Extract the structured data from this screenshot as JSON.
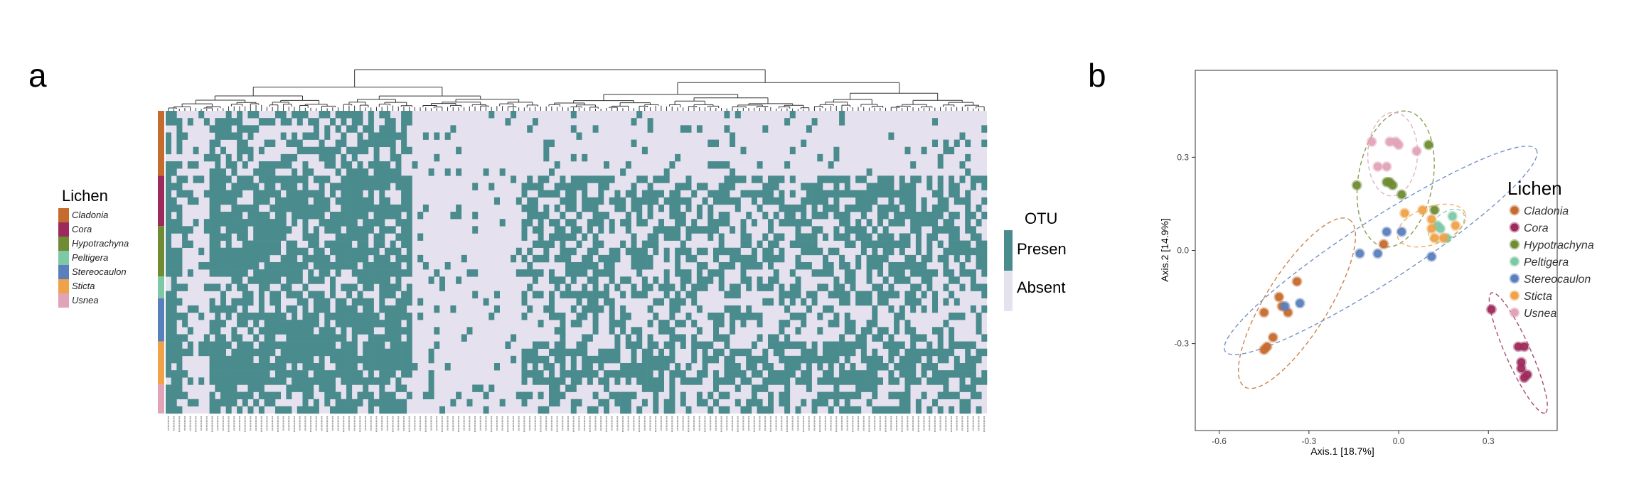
{
  "panel_a": {
    "label": "a",
    "lichen_legend": {
      "title": "Lichen",
      "items": [
        {
          "name": "Cladonia",
          "color": "#c66b2e"
        },
        {
          "name": "Cora",
          "color": "#9d2a5c"
        },
        {
          "name": "Hypotrachyna",
          "color": "#6f8c34"
        },
        {
          "name": "Peltigera",
          "color": "#7fc8a6"
        },
        {
          "name": "Stereocaulon",
          "color": "#5a7fbd"
        },
        {
          "name": "Sticta",
          "color": "#efa24a"
        },
        {
          "name": "Usnea",
          "color": "#e1a3b7"
        }
      ]
    },
    "otu_legend": {
      "title": "OTU",
      "items": [
        {
          "name": "Present",
          "color": "#4a8c8e"
        },
        {
          "name": "Absent",
          "color": "#e6e1ef"
        }
      ]
    }
  },
  "panel_b": {
    "label": "b",
    "legend_title": "Lichen"
  },
  "chart_data": [
    {
      "type": "heatmap",
      "title": "",
      "values_legend": [
        "Present",
        "Absent"
      ],
      "n_columns": 150,
      "n_rows": 42,
      "row_groups": [
        {
          "name": "Cladonia",
          "rows": 9
        },
        {
          "name": "Cora",
          "rows": 7
        },
        {
          "name": "Hypotrachyna",
          "rows": 7
        },
        {
          "name": "Peltigera",
          "rows": 3
        },
        {
          "name": "Stereocaulon",
          "rows": 6
        },
        {
          "name": "Sticta",
          "rows": 6
        },
        {
          "name": "Usnea",
          "rows": 4
        }
      ],
      "note_column_labels": "OTU identifiers printed vertically, illegible at this resolution"
    },
    {
      "type": "scatter",
      "title": "",
      "xlabel": "Axis.1   [18.7%]",
      "ylabel": "Axis.2   [14.9%]",
      "xlim": [
        -0.68,
        0.53
      ],
      "ylim": [
        -0.58,
        0.58
      ],
      "xticks": [
        "-0.6",
        "-0.3",
        "0.0",
        "0.3"
      ],
      "yticks": [
        "-0.3",
        "0.0",
        "0.3"
      ],
      "grid": false,
      "legend_position": "right",
      "series": [
        {
          "name": "Cladonia",
          "color": "#c66b2e",
          "points": [
            [
              -0.44,
              -0.31
            ],
            [
              -0.45,
              -0.32
            ],
            [
              -0.42,
              -0.28
            ],
            [
              -0.45,
              -0.2
            ],
            [
              -0.4,
              -0.15
            ],
            [
              -0.39,
              -0.18
            ],
            [
              -0.37,
              -0.2
            ],
            [
              -0.34,
              -0.1
            ],
            [
              -0.05,
              0.02
            ]
          ],
          "ellipse": {
            "cx": -0.34,
            "cy": -0.17,
            "rx": 0.33,
            "ry": 0.1,
            "angle": 58
          }
        },
        {
          "name": "Cora",
          "color": "#9d2a5c",
          "points": [
            [
              0.31,
              -0.19
            ],
            [
              0.4,
              -0.31
            ],
            [
              0.42,
              -0.31
            ],
            [
              0.41,
              -0.36
            ],
            [
              0.41,
              -0.38
            ],
            [
              0.43,
              -0.4
            ],
            [
              0.42,
              -0.41
            ]
          ],
          "ellipse": {
            "cx": 0.4,
            "cy": -0.33,
            "rx": 0.22,
            "ry": 0.04,
            "angle": -66
          }
        },
        {
          "name": "Hypotrachyna",
          "color": "#6f8c34",
          "points": [
            [
              -0.14,
              0.21
            ],
            [
              -0.04,
              0.22
            ],
            [
              -0.02,
              0.21
            ],
            [
              0.01,
              0.18
            ],
            [
              0.1,
              0.34
            ],
            [
              0.12,
              0.13
            ],
            [
              -0.03,
              0.22
            ]
          ],
          "ellipse": {
            "cx": -0.01,
            "cy": 0.23,
            "rx": 0.23,
            "ry": 0.12,
            "angle": 80
          }
        },
        {
          "name": "Peltigera",
          "color": "#7fc8a6",
          "points": [
            [
              0.18,
              0.11
            ],
            [
              0.16,
              0.04
            ],
            [
              0.13,
              0.08
            ],
            [
              0.14,
              0.07
            ]
          ],
          "ellipse": {
            "cx": 0.16,
            "cy": 0.08,
            "rx": 0.07,
            "ry": 0.04,
            "angle": 40
          }
        },
        {
          "name": "Stereocaulon",
          "color": "#5a7fbd",
          "points": [
            [
              -0.38,
              -0.18
            ],
            [
              -0.33,
              -0.17
            ],
            [
              -0.07,
              -0.01
            ],
            [
              -0.04,
              0.06
            ],
            [
              0.01,
              0.06
            ],
            [
              0.11,
              -0.02
            ],
            [
              -0.13,
              -0.01
            ]
          ],
          "ellipse": {
            "cx": -0.06,
            "cy": 0.0,
            "rx": 0.62,
            "ry": 0.1,
            "angle": 33
          }
        },
        {
          "name": "Sticta",
          "color": "#efa24a",
          "points": [
            [
              0.02,
              0.12
            ],
            [
              0.08,
              0.13
            ],
            [
              0.11,
              0.1
            ],
            [
              0.11,
              0.07
            ],
            [
              0.12,
              0.04
            ],
            [
              0.15,
              0.04
            ],
            [
              0.19,
              0.08
            ]
          ],
          "ellipse": {
            "cx": 0.11,
            "cy": 0.08,
            "rx": 0.12,
            "ry": 0.06,
            "angle": 20
          }
        },
        {
          "name": "Usnea",
          "color": "#e1a3b7",
          "points": [
            [
              -0.09,
              0.35
            ],
            [
              -0.03,
              0.35
            ],
            [
              -0.01,
              0.35
            ],
            [
              0.0,
              0.34
            ],
            [
              0.06,
              0.32
            ],
            [
              -0.04,
              0.27
            ],
            [
              -0.07,
              0.27
            ]
          ],
          "ellipse": {
            "cx": -0.02,
            "cy": 0.31,
            "rx": 0.14,
            "ry": 0.08,
            "angle": 88
          }
        }
      ]
    }
  ]
}
